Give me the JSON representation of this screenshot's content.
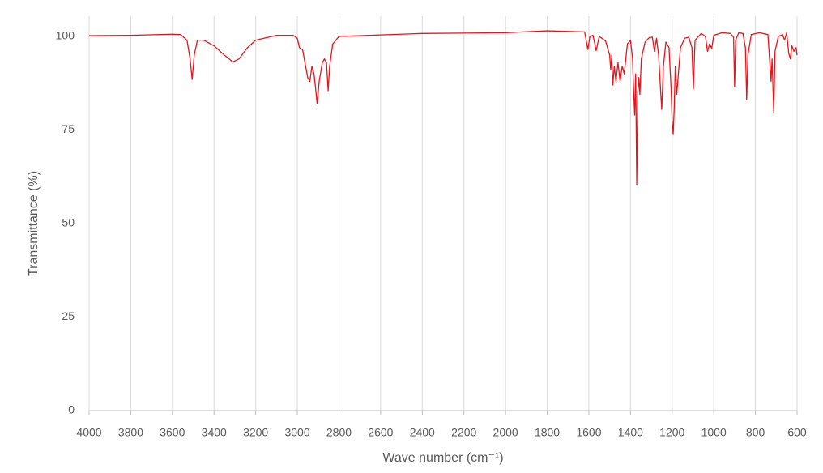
{
  "chart_data": {
    "type": "line",
    "xlabel": "Wave number (cm⁻¹)",
    "ylabel": "Transmittance (%)",
    "xlim": [
      4000,
      600
    ],
    "ylim": [
      0,
      100
    ],
    "xticks": [
      4000,
      3800,
      3600,
      3400,
      3200,
      3000,
      2800,
      2600,
      2400,
      2200,
      2000,
      1800,
      1600,
      1400,
      1200,
      1000,
      800,
      600
    ],
    "yticks": [
      0,
      25,
      50,
      75,
      100
    ],
    "grid": true,
    "series": [
      {
        "color": "#e8141b",
        "x": [
          4000,
          3800,
          3600,
          3560,
          3530,
          3515,
          3505,
          3495,
          3480,
          3450,
          3400,
          3350,
          3310,
          3280,
          3240,
          3200,
          3100,
          3020,
          3000,
          2990,
          2975,
          2960,
          2950,
          2940,
          2930,
          2920,
          2912,
          2905,
          2895,
          2880,
          2870,
          2860,
          2852,
          2845,
          2830,
          2800,
          2600,
          2400,
          2200,
          2000,
          1800,
          1620,
          1605,
          1595,
          1580,
          1565,
          1550,
          1520,
          1500,
          1495,
          1490,
          1485,
          1478,
          1470,
          1460,
          1450,
          1440,
          1430,
          1415,
          1400,
          1390,
          1386,
          1380,
          1375,
          1370,
          1365,
          1360,
          1355,
          1348,
          1330,
          1310,
          1295,
          1285,
          1275,
          1265,
          1258,
          1250,
          1242,
          1230,
          1215,
          1205,
          1200,
          1195,
          1190,
          1185,
          1178,
          1170,
          1160,
          1140,
          1120,
          1105,
          1098,
          1090,
          1060,
          1040,
          1030,
          1020,
          1010,
          1000,
          960,
          920,
          905,
          900,
          895,
          880,
          860,
          848,
          842,
          836,
          820,
          780,
          740,
          725,
          720,
          712,
          706,
          690,
          670,
          660,
          650,
          640,
          632,
          625,
          615,
          605,
          600
        ],
        "values": [
          100.2,
          100.3,
          100.6,
          100.5,
          99,
          94,
          88.5,
          95,
          99,
          99,
          97.5,
          95,
          93.2,
          94,
          97,
          99,
          100.3,
          100.3,
          99.5,
          97,
          96.5,
          92,
          89,
          88,
          92,
          90,
          86,
          82,
          88,
          93,
          94,
          93,
          85.5,
          92,
          98,
          100,
          100.4,
          100.8,
          100.9,
          101,
          101.5,
          101.2,
          96.5,
          100,
          100.3,
          96.2,
          100,
          98.8,
          95,
          91,
          95,
          87,
          92,
          88,
          93,
          88,
          92,
          90,
          98,
          98.9,
          94,
          87,
          79,
          90,
          60.5,
          85,
          89,
          84.5,
          94,
          98.5,
          99.7,
          99.8,
          96,
          99.5,
          95,
          88,
          80.5,
          92,
          98.5,
          97,
          86,
          77.5,
          73.8,
          81,
          92,
          84.5,
          90,
          97,
          99.5,
          99.8,
          97,
          86,
          99,
          100.8,
          100,
          96,
          98,
          96.8,
          100.3,
          101,
          100.8,
          99.8,
          86.5,
          99,
          101,
          100.8,
          97,
          83,
          95,
          100.5,
          101,
          100.5,
          88,
          94,
          79.5,
          96,
          100,
          100.5,
          99,
          101,
          95.5,
          94,
          97.5,
          96,
          97,
          95
        ]
      }
    ]
  }
}
